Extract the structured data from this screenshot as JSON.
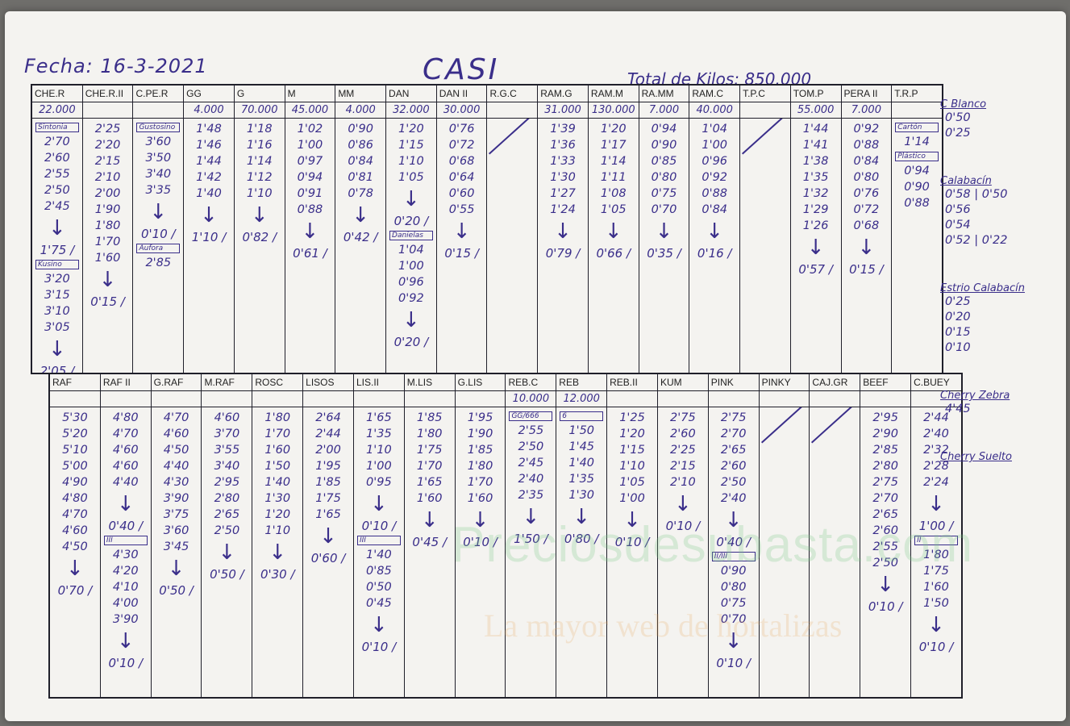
{
  "header": {
    "date": "Fecha: 16-3-2021",
    "title": "CASI",
    "total": "Total de Kilos: 850.000"
  },
  "top_columns": [
    {
      "name": "CHE.R",
      "kilos": "22.000",
      "sections": [
        {
          "label": "Sintonia",
          "values": [
            "2'70",
            "2'60",
            "2'55",
            "2'50",
            "2'45"
          ],
          "final": "1'75"
        },
        {
          "label": "Kusino",
          "values": [
            "3'20",
            "3'15",
            "3'10",
            "3'05"
          ],
          "final": "2'05"
        }
      ]
    },
    {
      "name": "CHE.R.II",
      "kilos": "",
      "sections": [
        {
          "values": [
            "2'25",
            "2'20",
            "2'15",
            "2'10",
            "2'00",
            "1'90",
            "1'80",
            "1'70",
            "1'60"
          ],
          "final": "0'15"
        }
      ]
    },
    {
      "name": "C.PE.R",
      "kilos": "",
      "sections": [
        {
          "label": "Gustosino",
          "values": [
            "3'60",
            "3'50",
            "3'40",
            "3'35"
          ],
          "final": "0'10"
        },
        {
          "label": "Aufora",
          "values": [
            "2'85"
          ]
        }
      ]
    },
    {
      "name": "GG",
      "kilos": "4.000",
      "sections": [
        {
          "values": [
            "1'48",
            "1'46",
            "1'44",
            "1'42",
            "1'40"
          ],
          "final": "1'10"
        }
      ]
    },
    {
      "name": "G",
      "kilos": "70.000",
      "sections": [
        {
          "values": [
            "1'18",
            "1'16",
            "1'14",
            "1'12",
            "1'10"
          ],
          "final": "0'82"
        }
      ]
    },
    {
      "name": "M",
      "kilos": "45.000",
      "sections": [
        {
          "values": [
            "1'02",
            "1'00",
            "0'97",
            "0'94",
            "0'91",
            "0'88"
          ],
          "final": "0'61"
        }
      ]
    },
    {
      "name": "MM",
      "kilos": "4.000",
      "sections": [
        {
          "values": [
            "0'90",
            "0'86",
            "0'84",
            "0'81",
            "0'78"
          ],
          "final": "0'42"
        }
      ]
    },
    {
      "name": "DAN",
      "kilos": "32.000",
      "sections": [
        {
          "values": [
            "1'20",
            "1'15",
            "1'10",
            "1'05"
          ],
          "final": "0'20"
        },
        {
          "label": "Danielas",
          "values": [
            "1'04",
            "1'00",
            "0'96",
            "0'92"
          ],
          "final": "0'20"
        }
      ]
    },
    {
      "name": "DAN II",
      "kilos": "30.000",
      "sections": [
        {
          "values": [
            "0'76",
            "0'72",
            "0'68",
            "0'64",
            "0'60",
            "0'55"
          ],
          "final": "0'15"
        }
      ]
    },
    {
      "name": "R.G.C",
      "kilos": "",
      "empty": true
    },
    {
      "name": "RAM.G",
      "kilos": "31.000",
      "sections": [
        {
          "values": [
            "1'39",
            "1'36",
            "1'33",
            "1'30",
            "1'27",
            "1'24"
          ],
          "final": "0'79"
        }
      ]
    },
    {
      "name": "RAM.M",
      "kilos": "130.000",
      "sections": [
        {
          "values": [
            "1'20",
            "1'17",
            "1'14",
            "1'11",
            "1'08",
            "1'05"
          ],
          "final": "0'66"
        }
      ]
    },
    {
      "name": "RA.MM",
      "kilos": "7.000",
      "sections": [
        {
          "values": [
            "0'94",
            "0'90",
            "0'85",
            "0'80",
            "0'75",
            "0'70"
          ],
          "final": "0'35"
        }
      ]
    },
    {
      "name": "RAM.C",
      "kilos": "40.000",
      "sections": [
        {
          "values": [
            "1'04",
            "1'00",
            "0'96",
            "0'92",
            "0'88",
            "0'84"
          ],
          "final": "0'16"
        }
      ]
    },
    {
      "name": "T.P.C",
      "kilos": "",
      "empty": true
    },
    {
      "name": "TOM.P",
      "kilos": "55.000",
      "sections": [
        {
          "values": [
            "1'44",
            "1'41",
            "1'38",
            "1'35",
            "1'32",
            "1'29",
            "1'26"
          ],
          "final": "0'57"
        }
      ]
    },
    {
      "name": "PERA II",
      "kilos": "7.000",
      "sections": [
        {
          "values": [
            "0'92",
            "0'88",
            "0'84",
            "0'80",
            "0'76",
            "0'72",
            "0'68"
          ],
          "final": "0'15"
        }
      ]
    },
    {
      "name": "T.R.P",
      "kilos": "",
      "sections": [
        {
          "label": "Cartón",
          "values": [
            "1'14"
          ]
        },
        {
          "label": "Plástico",
          "values": [
            "0'94",
            "0'90",
            "0'88"
          ]
        }
      ]
    }
  ],
  "bottom_columns": [
    {
      "name": "RAF",
      "kilos": "",
      "sections": [
        {
          "values": [
            "5'30",
            "5'20",
            "5'10",
            "5'00",
            "4'90",
            "4'80",
            "4'70",
            "4'60",
            "4'50"
          ],
          "final": "0'70"
        }
      ]
    },
    {
      "name": "RAF II",
      "kilos": "",
      "sections": [
        {
          "values": [
            "4'80",
            "4'70",
            "4'60",
            "4'60",
            "4'40"
          ],
          "final": "0'40"
        },
        {
          "label": "III",
          "values": [
            "4'30",
            "4'20",
            "4'10",
            "4'00",
            "3'90"
          ],
          "final": "0'10"
        }
      ]
    },
    {
      "name": "G.RAF",
      "kilos": "",
      "sections": [
        {
          "values": [
            "4'70",
            "4'60",
            "4'50",
            "4'40",
            "4'30",
            "3'90",
            "3'75",
            "3'60",
            "3'45"
          ],
          "final": "0'50"
        }
      ]
    },
    {
      "name": "M.RAF",
      "kilos": "",
      "sections": [
        {
          "values": [
            "4'60",
            "3'70",
            "3'55",
            "3'40",
            "2'95",
            "2'80",
            "2'65",
            "2'50"
          ],
          "final": "0'50"
        }
      ]
    },
    {
      "name": "ROSC",
      "kilos": "",
      "sections": [
        {
          "values": [
            "1'80",
            "1'70",
            "1'60",
            "1'50",
            "1'40",
            "1'30",
            "1'20",
            "1'10"
          ],
          "final": "0'30"
        }
      ]
    },
    {
      "name": "LISOS",
      "kilos": "",
      "sections": [
        {
          "values": [
            "2'64",
            "2'44",
            "2'00",
            "1'95",
            "1'85",
            "1'75",
            "1'65"
          ],
          "final": "0'60"
        }
      ]
    },
    {
      "name": "LIS.II",
      "kilos": "",
      "sections": [
        {
          "values": [
            "1'65",
            "1'35",
            "1'10",
            "1'00",
            "0'95"
          ],
          "final": "0'10"
        },
        {
          "label": "III",
          "values": [
            "1'40",
            "0'85",
            "0'50",
            "0'45"
          ],
          "final": "0'10"
        }
      ]
    },
    {
      "name": "M.LIS",
      "kilos": "",
      "sections": [
        {
          "values": [
            "1'85",
            "1'80",
            "1'75",
            "1'70",
            "1'65",
            "1'60"
          ],
          "final": "0'45"
        }
      ]
    },
    {
      "name": "G.LIS",
      "kilos": "",
      "sections": [
        {
          "values": [
            "1'95",
            "1'90",
            "1'85",
            "1'80",
            "1'70",
            "1'60"
          ],
          "final": "0'10"
        }
      ]
    },
    {
      "name": "REB.C",
      "kilos": "10.000",
      "sections": [
        {
          "label": "GG/666",
          "values": [
            "2'55",
            "2'50",
            "2'45",
            "2'40",
            "2'35"
          ],
          "final": "1'50"
        }
      ]
    },
    {
      "name": "REB",
      "kilos": "12.000",
      "sections": [
        {
          "label": "6",
          "values": [
            "1'50",
            "1'45",
            "1'40",
            "1'35",
            "1'30"
          ],
          "final": "0'80"
        }
      ]
    },
    {
      "name": "REB.II",
      "kilos": "",
      "sections": [
        {
          "values": [
            "1'25",
            "1'20",
            "1'15",
            "1'10",
            "1'05",
            "1'00"
          ],
          "final": "0'10"
        }
      ]
    },
    {
      "name": "KUM",
      "kilos": "",
      "sections": [
        {
          "values": [
            "2'75",
            "2'60",
            "2'25",
            "2'15",
            "2'10"
          ],
          "final": "0'10"
        }
      ]
    },
    {
      "name": "PINK",
      "kilos": "",
      "sections": [
        {
          "values": [
            "2'75",
            "2'70",
            "2'65",
            "2'60",
            "2'50",
            "2'40"
          ],
          "final": "0'40"
        },
        {
          "label": "II/III",
          "values": [
            "0'90",
            "0'80",
            "0'75",
            "0'70"
          ],
          "final": "0'10"
        }
      ]
    },
    {
      "name": "PINKY",
      "kilos": "",
      "empty": true
    },
    {
      "name": "CAJ.GR",
      "kilos": "",
      "empty": true
    },
    {
      "name": "BEEF",
      "kilos": "",
      "sections": [
        {
          "values": [
            "2'95",
            "2'90",
            "2'85",
            "2'80",
            "2'75",
            "2'70",
            "2'65",
            "2'60",
            "2'55",
            "2'50"
          ],
          "final": "0'10"
        }
      ]
    },
    {
      "name": "C.BUEY",
      "kilos": "",
      "sections": [
        {
          "values": [
            "2'44",
            "2'40",
            "2'32",
            "2'28",
            "2'24"
          ],
          "final": "1'00"
        },
        {
          "label": "II",
          "values": [
            "1'80",
            "1'75",
            "1'60",
            "1'50"
          ],
          "final": "0'10"
        }
      ]
    }
  ],
  "side_notes": [
    {
      "label": "C Blanco",
      "values": [
        "0'50",
        "0'25"
      ]
    },
    {
      "label": "Calabacín",
      "values": [
        "0'58 | 0'50",
        "0'56",
        "0'54",
        "0'52 | 0'22"
      ]
    },
    {
      "label": "Estrio Calabacín",
      "values": [
        "0'25",
        "0'20",
        "0'15",
        "0'10"
      ]
    },
    {
      "label": "Cherry Zebra",
      "values": [
        "4'45"
      ]
    },
    {
      "label": "Cherry Suelto",
      "values": []
    }
  ],
  "watermark": {
    "site": "Preciosdesubasta.com",
    "tagline": "La mayor web de hortalizas"
  }
}
